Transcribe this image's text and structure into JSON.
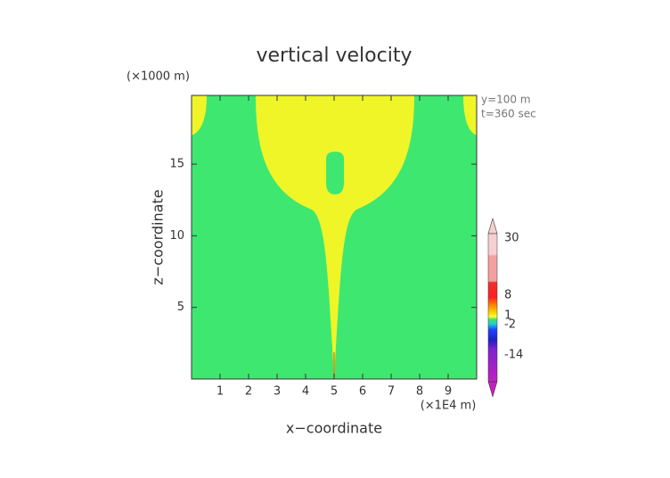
{
  "chart_data": {
    "type": "contour",
    "title": "vertical velocity",
    "xlabel": "x−coordinate",
    "ylabel": "z−coordinate",
    "xunit": "(×1E4 m)",
    "yunit": "(×1000 m)",
    "annotations": [
      "y=100 m",
      "t=360 sec"
    ],
    "xlim": [
      0,
      10
    ],
    "xticks": [
      1,
      2,
      3,
      4,
      5,
      6,
      7,
      8,
      9
    ],
    "ylim": [
      0,
      19.8
    ],
    "yticks": [
      5,
      10,
      15
    ],
    "colorbar_ticks": [
      30,
      8,
      1,
      -2,
      -14
    ]
  }
}
